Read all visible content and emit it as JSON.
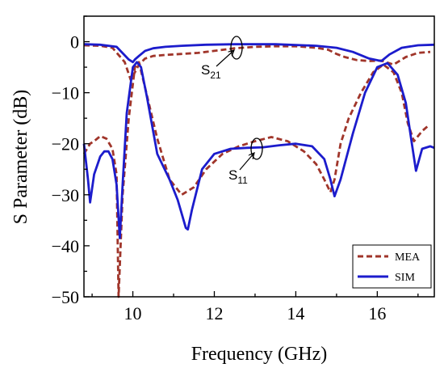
{
  "chart_data": {
    "type": "line",
    "xlabel": "Frequency (GHz)",
    "ylabel": "S Parameter (dB)",
    "xlim": [
      8.8,
      17.4
    ],
    "ylim": [
      -50,
      5
    ],
    "xticks": [
      10,
      12,
      14,
      16
    ],
    "yticks": [
      0,
      -10,
      -20,
      -30,
      -40,
      -50
    ],
    "legend": "bottom-right",
    "grid": false,
    "series": [
      {
        "name": "MEA",
        "color": "#a0352a",
        "style": "dashed",
        "curves": [
          {
            "label": "S21",
            "x": [
              8.8,
              9.2,
              9.5,
              9.8,
              9.95,
              10.05,
              10.15,
              10.3,
              10.5,
              10.8,
              11.2,
              11.6,
              12.0,
              12.5,
              13.0,
              13.5,
              14.0,
              14.5,
              14.8,
              15.0,
              15.2,
              15.5,
              15.8,
              16.1,
              16.4,
              16.7,
              17.0,
              17.3
            ],
            "y": [
              -0.7,
              -0.8,
              -1.2,
              -4,
              -7.5,
              -6,
              -4.5,
              -3.3,
              -2.8,
              -2.6,
              -2.4,
              -2.2,
              -1.8,
              -1.3,
              -1.0,
              -0.9,
              -0.9,
              -1.2,
              -1.6,
              -2.4,
              -3.0,
              -3.6,
              -3.8,
              -3.7,
              -4.5,
              -3.0,
              -2.2,
              -2.0
            ]
          },
          {
            "label": "S11",
            "x": [
              8.8,
              8.95,
              9.05,
              9.2,
              9.35,
              9.5,
              9.6,
              9.65,
              9.75,
              9.9,
              10.05,
              10.15,
              10.3,
              10.6,
              10.9,
              11.2,
              11.5,
              11.8,
              12.2,
              12.6,
              13.0,
              13.4,
              13.8,
              14.2,
              14.5,
              14.7,
              14.85,
              14.95,
              15.1,
              15.3,
              15.6,
              15.9,
              16.15,
              16.4,
              16.6,
              16.75,
              16.9,
              17.1,
              17.25
            ],
            "y": [
              -22,
              -20,
              -19.5,
              -18.5,
              -19,
              -21,
              -26,
              -50,
              -30,
              -15,
              -5,
              -4,
              -9,
              -19,
              -27,
              -30,
              -28.5,
              -25,
              -22,
              -20.5,
              -19.5,
              -18.7,
              -19.5,
              -21.5,
              -24,
              -27,
              -29.5,
              -27,
              -20,
              -15,
              -10,
              -6,
              -4.5,
              -6,
              -10,
              -16,
              -19.5,
              -17.5,
              -16.5
            ]
          }
        ]
      },
      {
        "name": "SIM",
        "color": "#1c1ccc",
        "style": "solid",
        "curves": [
          {
            "label": "S21",
            "x": [
              8.8,
              9.2,
              9.6,
              9.9,
              10.0,
              10.05,
              10.15,
              10.3,
              10.5,
              10.8,
              11.2,
              11.8,
              12.5,
              13.5,
              14.5,
              15.0,
              15.4,
              15.8,
              16.1,
              16.3,
              16.6,
              17.0,
              17.4
            ],
            "y": [
              -0.5,
              -0.6,
              -1.0,
              -3.5,
              -4,
              -3.5,
              -2.8,
              -1.8,
              -1.3,
              -1.0,
              -0.8,
              -0.6,
              -0.5,
              -0.5,
              -0.8,
              -1.2,
              -2.0,
              -3.3,
              -3.8,
              -2.5,
              -1.2,
              -0.7,
              -0.6
            ]
          },
          {
            "label": "S11",
            "x": [
              8.8,
              8.9,
              8.95,
              9.05,
              9.2,
              9.3,
              9.4,
              9.5,
              9.6,
              9.68,
              9.75,
              9.85,
              10.0,
              10.1,
              10.2,
              10.35,
              10.6,
              10.9,
              11.1,
              11.3,
              11.35,
              11.45,
              11.7,
              12.0,
              12.4,
              12.8,
              13.2,
              13.6,
              14.0,
              14.4,
              14.7,
              14.85,
              14.95,
              15.1,
              15.4,
              15.7,
              16.0,
              16.25,
              16.5,
              16.7,
              16.85,
              16.95,
              17.1,
              17.3,
              17.4
            ],
            "y": [
              -20,
              -27,
              -31.5,
              -26,
              -22.5,
              -21.5,
              -21.5,
              -23,
              -28,
              -38.5,
              -28,
              -14,
              -5,
              -4,
              -5,
              -11,
              -22,
              -27,
              -31,
              -36.5,
              -36.8,
              -33,
              -25,
              -22,
              -21,
              -20.8,
              -20.7,
              -20.3,
              -20,
              -20.5,
              -23,
              -27,
              -30.3,
              -27,
              -18,
              -10,
              -5,
              -4.2,
              -6.5,
              -12,
              -20,
              -25.3,
              -21,
              -20.5,
              -20.8
            ]
          }
        ]
      }
    ],
    "annotations": [
      {
        "text": "S",
        "sub": "21"
      },
      {
        "text": "S",
        "sub": "11"
      }
    ]
  }
}
